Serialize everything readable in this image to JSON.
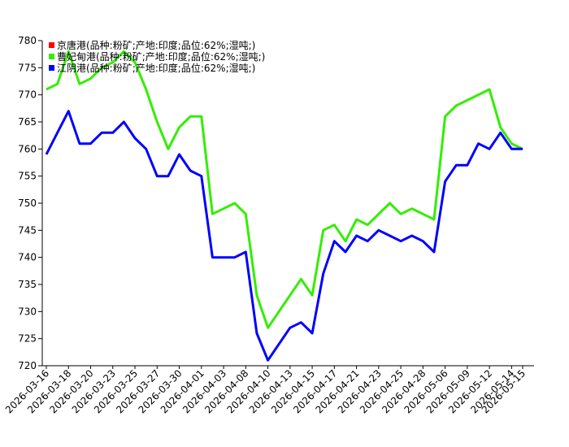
{
  "chart_data": {
    "type": "line",
    "categories": [
      "2026-03-16",
      null,
      "2026-03-18",
      null,
      "2026-03-20",
      null,
      "2026-03-23",
      null,
      "2026-03-25",
      null,
      "2026-03-27",
      null,
      "2026-03-30",
      null,
      "2026-04-01",
      null,
      "2026-04-03",
      null,
      "2026-04-08",
      null,
      "2026-04-10",
      null,
      "2026-04-13",
      null,
      "2026-04-15",
      null,
      "2026-04-17",
      null,
      "2026-04-21",
      null,
      "2026-04-23",
      null,
      "2026-04-25",
      null,
      "2026-04-28",
      null,
      "2026-05-06",
      null,
      "2026-05-09",
      null,
      "2026-05-12",
      null,
      "2026-05-14",
      "2026-05-15"
    ],
    "series": [
      {
        "name": "京唐港(品种:粉矿;产地:印度;品位:62%;湿吨;)",
        "color": "#ff0000",
        "values": [
          null,
          null,
          null,
          null,
          null,
          null,
          null,
          null,
          null,
          null,
          null,
          null,
          null,
          null,
          null,
          null,
          null,
          null,
          null,
          null,
          null,
          null,
          null,
          null,
          null,
          null,
          null,
          null,
          null,
          null,
          null,
          null,
          null,
          null,
          null,
          null,
          null,
          null,
          null,
          null,
          null,
          null,
          null,
          null
        ]
      },
      {
        "name": "曹妃甸港(品种:粉矿;产地:印度;品位:62%;湿吨;)",
        "color": "#33ee00",
        "values": [
          771,
          772,
          778,
          772,
          773,
          775,
          776,
          778,
          776,
          771,
          765,
          760,
          764,
          766,
          766,
          748,
          749,
          750,
          748,
          733,
          727,
          730,
          733,
          736,
          733,
          745,
          746,
          743,
          747,
          746,
          748,
          750,
          748,
          749,
          748,
          747,
          766,
          768,
          769,
          770,
          771,
          764,
          761,
          760
        ]
      },
      {
        "name": "江阴港(品种:粉矿;产地:印度;品位:62%;湿吨;)",
        "color": "#0000ff",
        "values": [
          759,
          763,
          767,
          761,
          761,
          763,
          763,
          765,
          762,
          760,
          755,
          755,
          759,
          756,
          755,
          740,
          740,
          740,
          741,
          726,
          721,
          724,
          727,
          728,
          726,
          737,
          743,
          741,
          744,
          743,
          745,
          744,
          743,
          744,
          743,
          741,
          754,
          757,
          757,
          761,
          760,
          763,
          760,
          760
        ]
      }
    ],
    "ylim": [
      720,
      780
    ],
    "yticks": [
      720,
      725,
      730,
      735,
      740,
      745,
      750,
      755,
      760,
      765,
      770,
      775,
      780
    ]
  }
}
